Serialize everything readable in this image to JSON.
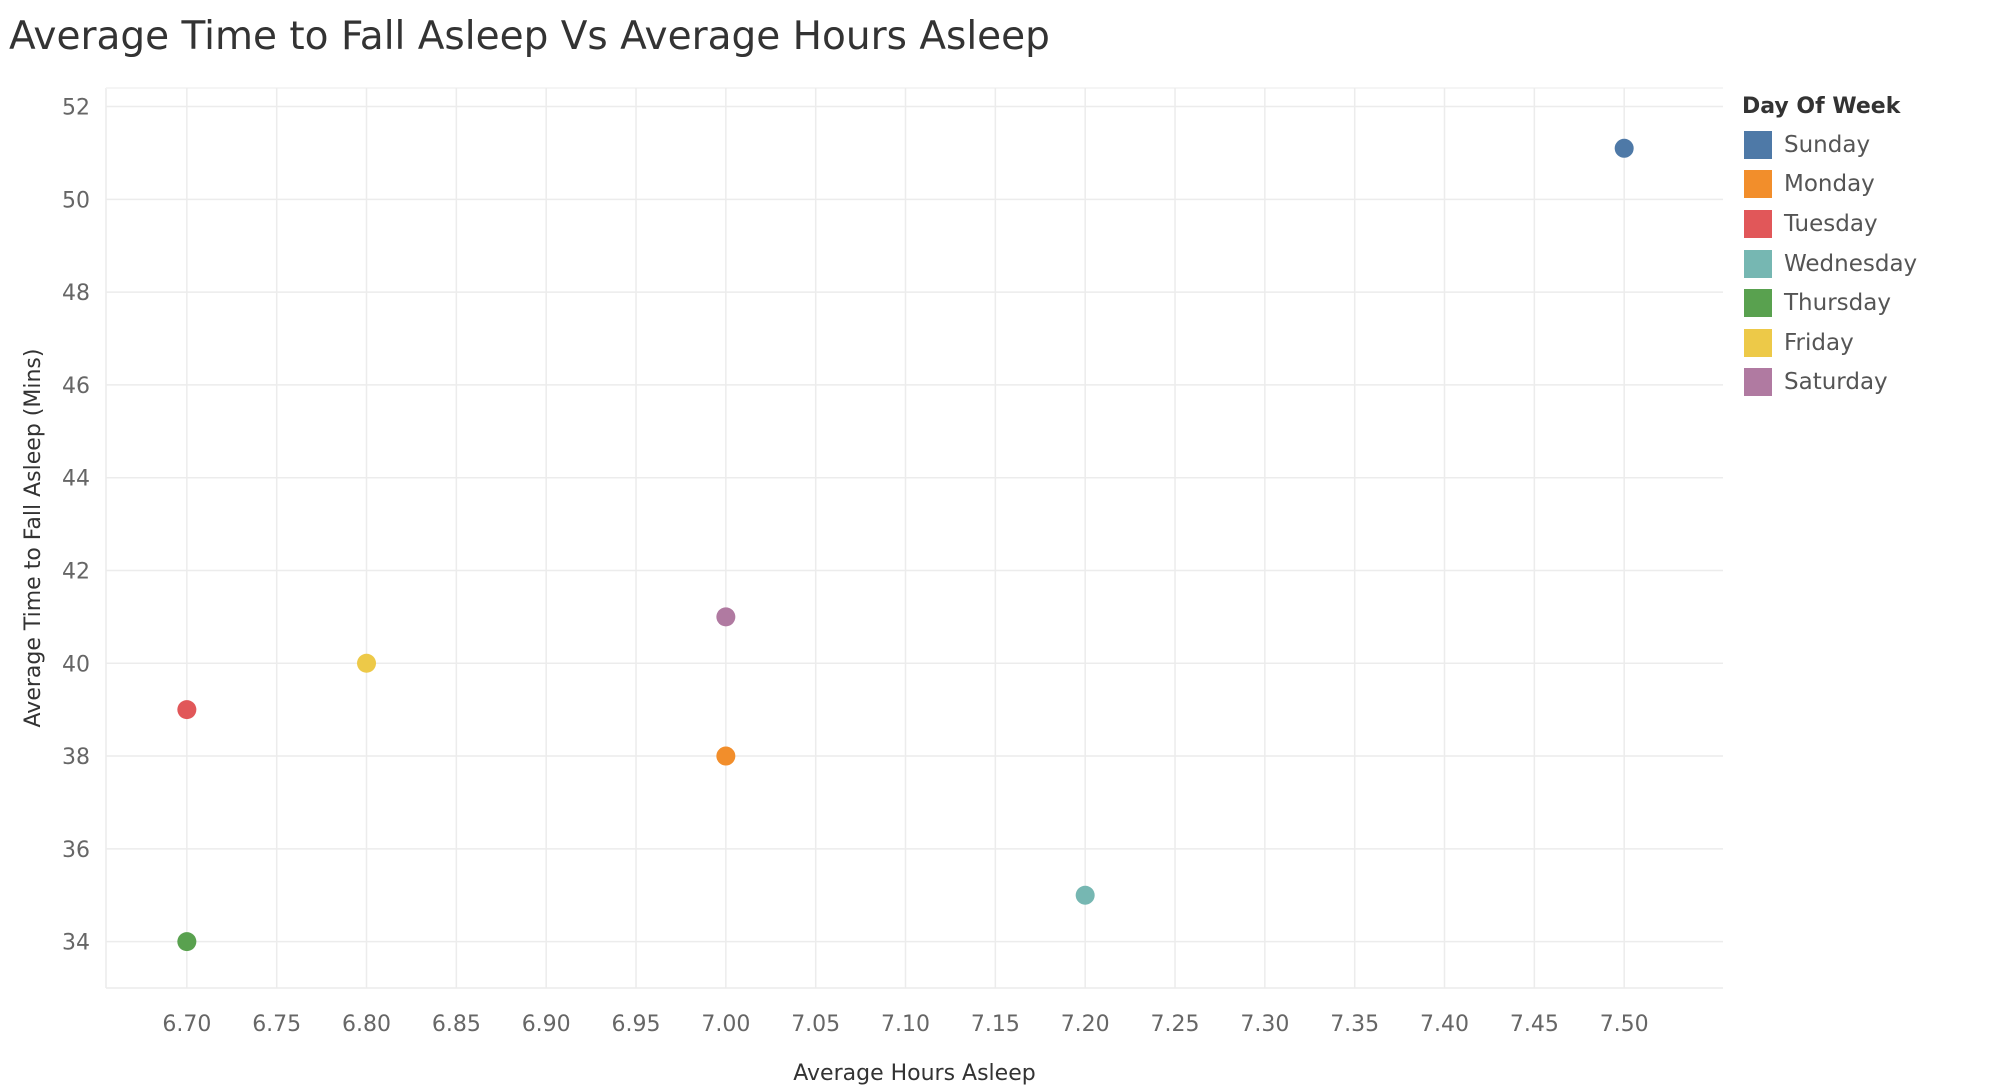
{
  "chart_data": {
    "type": "scatter",
    "title": "Average Time to Fall Asleep Vs Average Hours Asleep",
    "xlabel": "Average Hours Asleep",
    "ylabel": "Average Time  to Fall Asleep (Mins)",
    "xlim": [
      6.655,
      7.555
    ],
    "ylim": [
      33.0,
      52.4
    ],
    "x_ticks": [
      "6.70",
      "6.75",
      "6.80",
      "6.85",
      "6.90",
      "6.95",
      "7.00",
      "7.05",
      "7.10",
      "7.15",
      "7.20",
      "7.25",
      "7.30",
      "7.35",
      "7.40",
      "7.45",
      "7.50"
    ],
    "y_ticks": [
      "34",
      "36",
      "38",
      "40",
      "42",
      "44",
      "46",
      "48",
      "50",
      "52"
    ],
    "grid": true,
    "legend_title": "Day Of Week",
    "legend_position": "right",
    "series": [
      {
        "name": "Sunday",
        "color": "#4e79a7",
        "x": 7.5,
        "y": 51.1
      },
      {
        "name": "Monday",
        "color": "#f28e2b",
        "x": 7.0,
        "y": 38.0
      },
      {
        "name": "Tuesday",
        "color": "#e15759",
        "x": 6.7,
        "y": 39.0
      },
      {
        "name": "Wednesday",
        "color": "#76b7b2",
        "x": 7.2,
        "y": 35.0
      },
      {
        "name": "Thursday",
        "color": "#59a14f",
        "x": 6.7,
        "y": 34.0
      },
      {
        "name": "Friday",
        "color": "#edc948",
        "x": 6.8,
        "y": 40.0
      },
      {
        "name": "Saturday",
        "color": "#b07aa1",
        "x": 7.0,
        "y": 41.0
      }
    ]
  }
}
